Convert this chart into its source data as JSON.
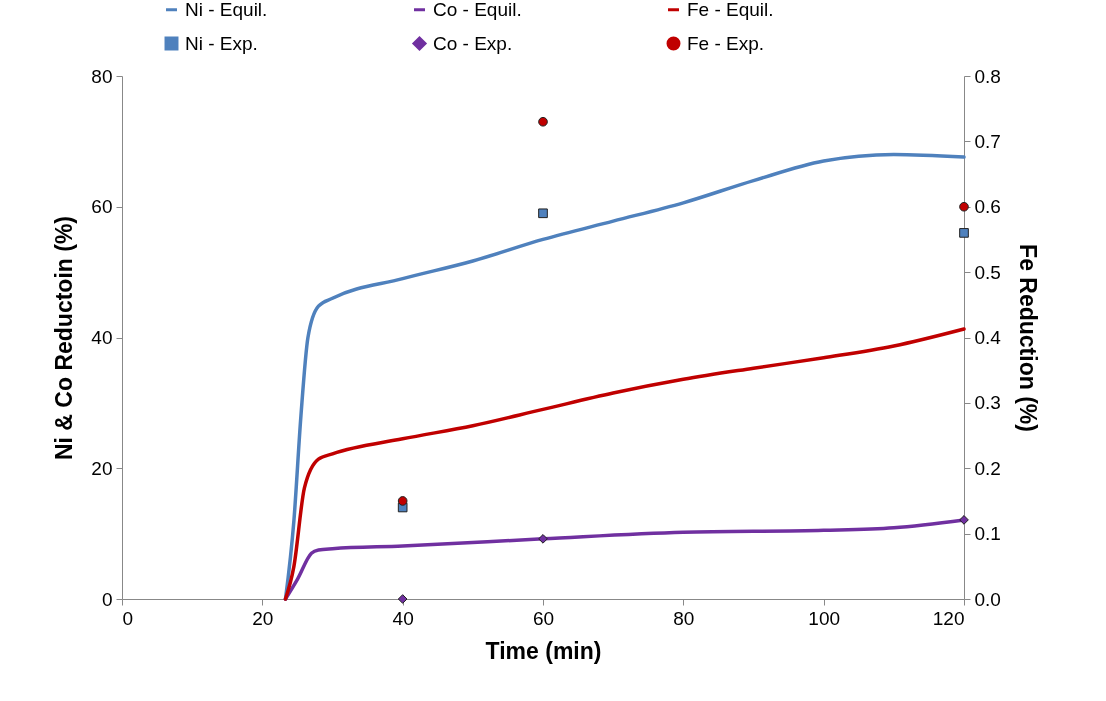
{
  "chart_data": {
    "type": "line",
    "xlabel": "Time (min)",
    "ylabel": "Ni & Co Reductoin (%)",
    "y2label": "Fe Reduction (%)",
    "xlim": [
      0,
      120
    ],
    "xticks": [
      0,
      20,
      40,
      60,
      80,
      100,
      120
    ],
    "ylim": [
      0,
      80
    ],
    "yticks": [
      0,
      20,
      40,
      60,
      80
    ],
    "y2lim": [
      0,
      0.8
    ],
    "y2ticks": [
      {
        "value": 0,
        "label": "0.0"
      },
      {
        "value": 0.1,
        "label": "0.1"
      },
      {
        "value": 0.2,
        "label": "0.2"
      },
      {
        "value": 0.3,
        "label": "0.3"
      },
      {
        "value": 0.4,
        "label": "0.4"
      },
      {
        "value": 0.5,
        "label": "0.5"
      },
      {
        "value": 0.6,
        "label": "0.6"
      },
      {
        "value": 0.7,
        "label": "0.7"
      },
      {
        "value": 0.8,
        "label": "0.8"
      }
    ],
    "grid": false,
    "legend": "top",
    "series": [
      {
        "name": "Ni - Equil.",
        "marker": "none",
        "color": "#4f81bd",
        "x": [
          23.3,
          24.5,
          25.5,
          26.5,
          28,
          30,
          40,
          50,
          60,
          70,
          80,
          90,
          100,
          110,
          120
        ],
        "values": [
          0,
          12,
          28,
          40,
          44.8,
          46,
          49,
          51.7,
          55,
          57.8,
          60.6,
          64,
          67,
          68,
          67.6
        ]
      },
      {
        "name": "Co - Equil.",
        "marker": "none",
        "color": "#7030a0",
        "x": [
          23.3,
          25,
          27,
          28,
          30,
          40,
          60,
          80,
          100,
          110,
          120
        ],
        "values": [
          0,
          3,
          7,
          7.5,
          7.7,
          8.1,
          9.2,
          10.2,
          10.5,
          10.9,
          12.1
        ]
      },
      {
        "name": "Fe - Equil.",
        "marker": "none",
        "color": "#c00000",
        "axis": "y2",
        "x": [
          23.3,
          24.5,
          26,
          28,
          30,
          40,
          50,
          60,
          70,
          80,
          90,
          100,
          110,
          120
        ],
        "values": [
          0,
          0.05,
          0.17,
          0.214,
          0.222,
          0.245,
          0.265,
          0.29,
          0.315,
          0.336,
          0.353,
          0.369,
          0.387,
          0.413
        ]
      },
      {
        "name": "Ni - Exp.",
        "type": "scatter",
        "marker": "square",
        "color": "#4f81bd",
        "x": [
          40,
          60,
          120
        ],
        "values": [
          14,
          59,
          56
        ]
      },
      {
        "name": "Co - Exp.",
        "type": "scatter",
        "marker": "diamond",
        "color": "#7030a0",
        "x": [
          40,
          60,
          120
        ],
        "values": [
          0,
          9.2,
          12.1
        ]
      },
      {
        "name": "Fe - Exp.",
        "type": "scatter",
        "marker": "circle",
        "color": "#c00000",
        "axis": "y2",
        "x": [
          40,
          60,
          120
        ],
        "values": [
          0.15,
          0.73,
          0.6
        ]
      }
    ]
  }
}
